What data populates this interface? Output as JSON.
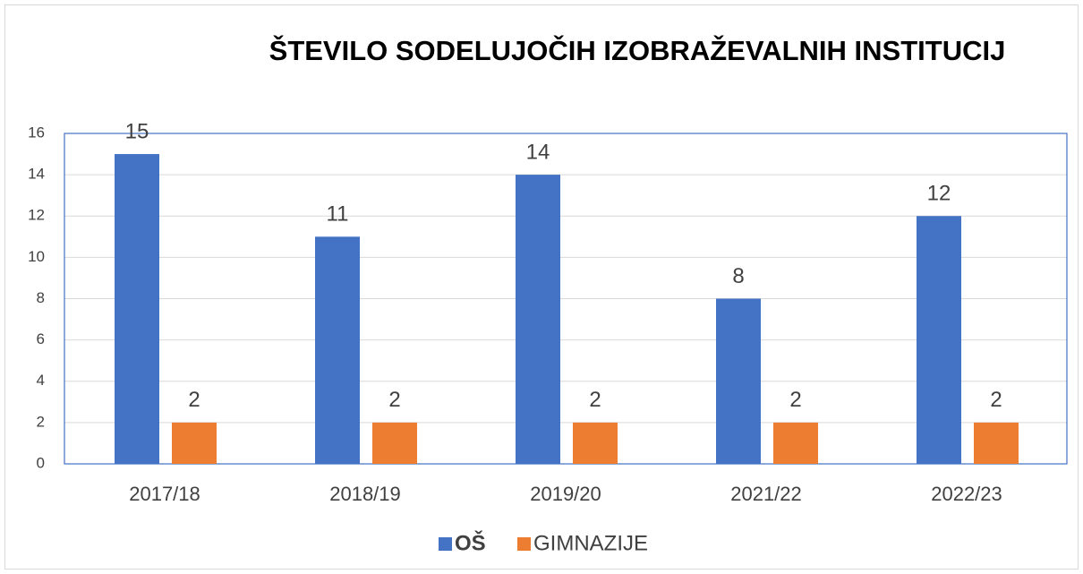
{
  "chart_data": {
    "type": "bar",
    "title": "ŠTEVILO SODELUJOČIH IZOBRAŽEVALNIH INSTITUCIJ",
    "categories": [
      "2017/18",
      "2018/19",
      "2019/20",
      "2021/22",
      "2022/23"
    ],
    "series": [
      {
        "name": "OŠ",
        "color": "#4472c4",
        "values": [
          15,
          11,
          14,
          8,
          12
        ]
      },
      {
        "name": "GIMNAZIJE",
        "color": "#ed7d31",
        "values": [
          2,
          2,
          2,
          2,
          2
        ]
      }
    ],
    "ylim": [
      0,
      16
    ],
    "yticks": [
      0,
      2,
      4,
      6,
      8,
      10,
      12,
      14,
      16
    ],
    "grid": true,
    "legend": "bottom"
  }
}
